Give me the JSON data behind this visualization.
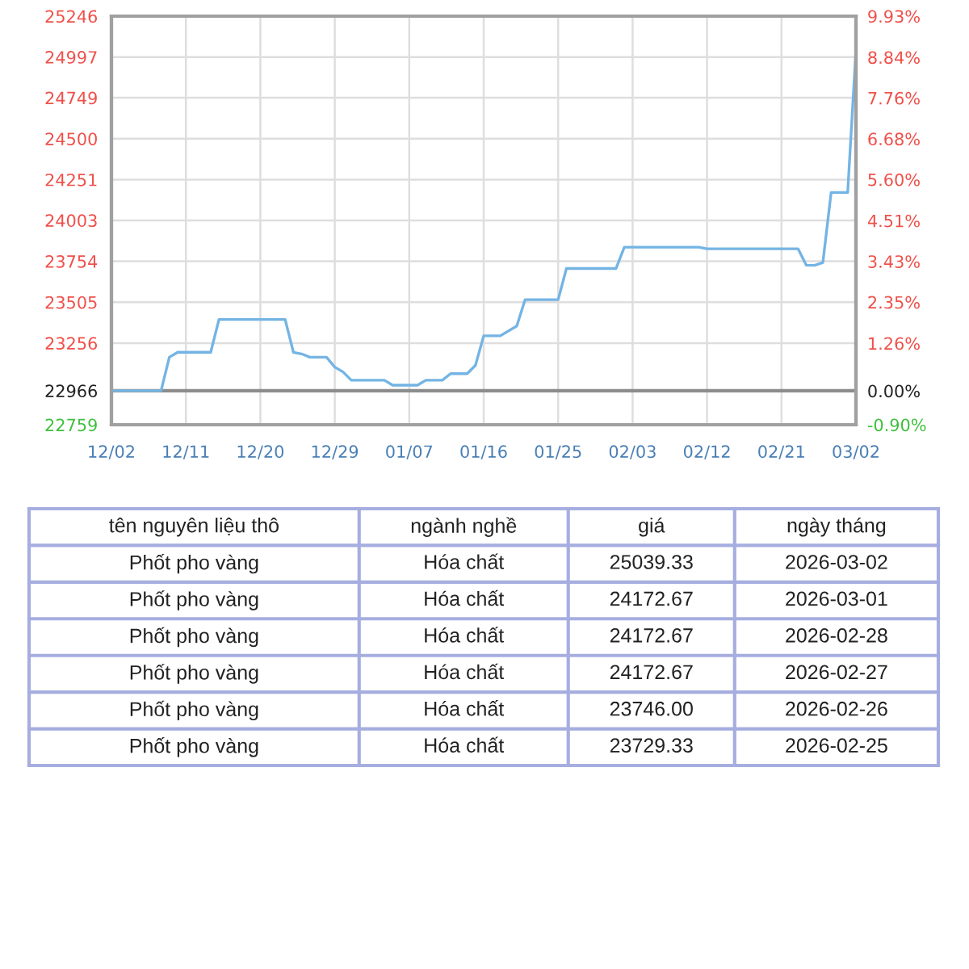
{
  "chart_data": [
    {
      "type": "line",
      "x": [
        "2025-12-02",
        "2025-12-08",
        "2025-12-09",
        "2025-12-10",
        "2025-12-14",
        "2025-12-15",
        "2025-12-23",
        "2025-12-24",
        "2025-12-25",
        "2025-12-26",
        "2025-12-28",
        "2025-12-29",
        "2025-12-30",
        "2025-12-31",
        "2026-01-04",
        "2026-01-05",
        "2026-01-08",
        "2026-01-09",
        "2026-01-11",
        "2026-01-12",
        "2026-01-14",
        "2026-01-15",
        "2026-01-16",
        "2026-01-18",
        "2026-01-20",
        "2026-01-21",
        "2026-01-25",
        "2026-01-26",
        "2026-02-01",
        "2026-02-02",
        "2026-02-11",
        "2026-02-12",
        "2026-02-23",
        "2026-02-24",
        "2026-02-25",
        "2026-02-26",
        "2026-02-27",
        "2026-02-28",
        "2026-03-01",
        "2026-03-02"
      ],
      "series": [
        {
          "color": "#74b4e4",
          "values": [
            22966,
            22966,
            23170,
            23200,
            23200,
            23400,
            23400,
            23200,
            23190,
            23170,
            23170,
            23110,
            23080,
            23030,
            23030,
            23000,
            23000,
            23030,
            23030,
            23070,
            23070,
            23120,
            23300,
            23300,
            23360,
            23520,
            23520,
            23710,
            23710,
            23840,
            23840,
            23830,
            23830,
            23730,
            23729.33,
            23746.0,
            24172.67,
            24172.67,
            24172.67,
            25039.33
          ]
        }
      ],
      "xlim": [
        "2025-12-02",
        "2026-03-02"
      ],
      "xticks": [
        {
          "value": "2025-12-02",
          "label": "12/02"
        },
        {
          "value": "2025-12-11",
          "label": "12/11"
        },
        {
          "value": "2025-12-20",
          "label": "12/20"
        },
        {
          "value": "2025-12-29",
          "label": "12/29"
        },
        {
          "value": "2026-01-07",
          "label": "01/07"
        },
        {
          "value": "2026-01-16",
          "label": "01/16"
        },
        {
          "value": "2026-01-25",
          "label": "01/25"
        },
        {
          "value": "2026-02-03",
          "label": "02/03"
        },
        {
          "value": "2026-02-12",
          "label": "02/12"
        },
        {
          "value": "2026-02-21",
          "label": "02/21"
        },
        {
          "value": "2026-03-02",
          "label": "03/02"
        }
      ],
      "ylim": [
        22759,
        25246
      ],
      "yticks": [
        22759,
        22966,
        23256,
        23505,
        23754,
        24003,
        24251,
        24500,
        24749,
        24997,
        25246
      ],
      "y2lim": [
        -0.9,
        9.93
      ],
      "y2ticks": [
        {
          "value": -0.9,
          "label": "-0.90%"
        },
        {
          "value": 0.0,
          "label": "0.00%"
        },
        {
          "value": 1.26,
          "label": "1.26%"
        },
        {
          "value": 2.35,
          "label": "2.35%"
        },
        {
          "value": 3.43,
          "label": "3.43%"
        },
        {
          "value": 4.51,
          "label": "4.51%"
        },
        {
          "value": 5.6,
          "label": "5.60%"
        },
        {
          "value": 6.68,
          "label": "6.68%"
        },
        {
          "value": 7.76,
          "label": "7.76%"
        },
        {
          "value": 8.84,
          "label": "8.84%"
        },
        {
          "value": 9.93,
          "label": "9.93%"
        }
      ],
      "ref_lines": [
        {
          "axis": "y",
          "value": 22966,
          "color": "#8c8c8c"
        }
      ],
      "grid": true
    },
    {
      "type": "other",
      "categories": [
        "tên nguyên liệu thô",
        "ngành nghề",
        "giá",
        "ngày tháng"
      ],
      "cell_labels": [
        [
          "Phốt pho vàng",
          "Hóa chất",
          "25039.33",
          "2026-03-02"
        ],
        [
          "Phốt pho vàng",
          "Hóa chất",
          "24172.67",
          "2026-03-01"
        ],
        [
          "Phốt pho vàng",
          "Hóa chất",
          "24172.67",
          "2026-02-28"
        ],
        [
          "Phốt pho vàng",
          "Hóa chất",
          "24172.67",
          "2026-02-27"
        ],
        [
          "Phốt pho vàng",
          "Hóa chất",
          "23746.00",
          "2026-02-26"
        ],
        [
          "Phốt pho vàng",
          "Hóa chất",
          "23729.33",
          "2026-02-25"
        ]
      ]
    }
  ]
}
